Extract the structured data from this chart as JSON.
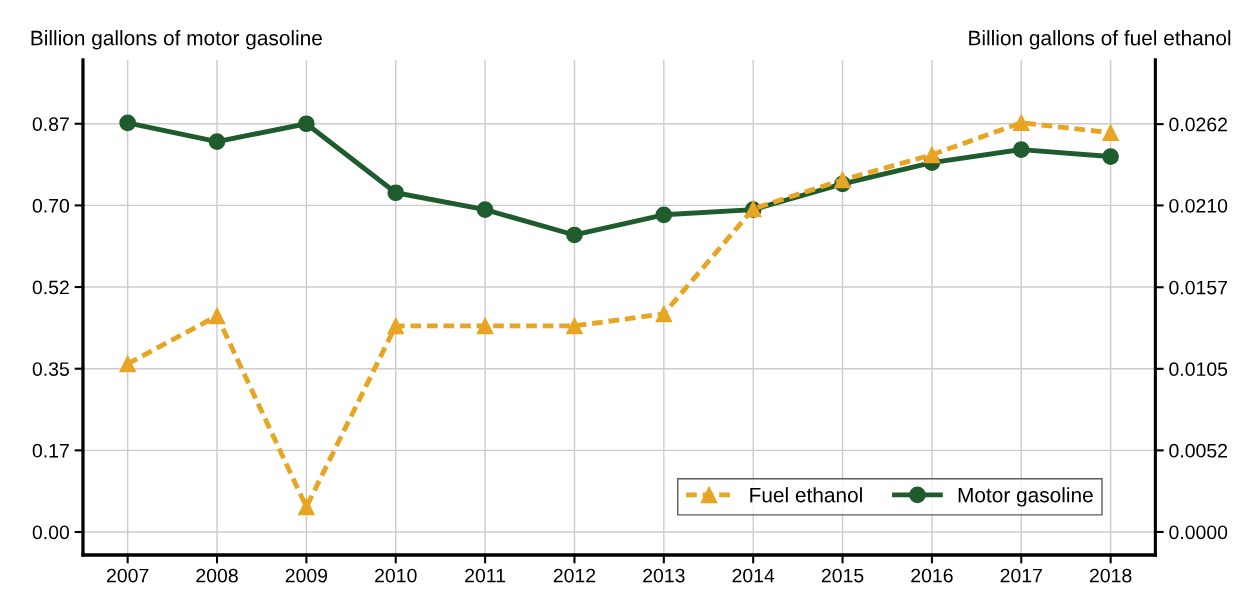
{
  "chart_data": {
    "type": "line",
    "ylabel": "Billion gallons of motor gasoline",
    "y2label": "Billion gallons of fuel ethanol",
    "categories": [
      "2007",
      "2008",
      "2009",
      "2010",
      "2011",
      "2012",
      "2013",
      "2014",
      "2015",
      "2016",
      "2017",
      "2018"
    ],
    "series": [
      {
        "name": "Fuel ethanol",
        "color": "#e8a524",
        "axis": "y2",
        "marker": "triangle",
        "line_style": "dashed",
        "values": [
          0.01079,
          0.01387,
          0.00161,
          0.01323,
          0.01323,
          0.01323,
          0.014,
          0.02074,
          0.0226,
          0.02421,
          0.02627,
          0.02563
        ]
      },
      {
        "name": "Motor gasoline",
        "color": "#1e5c2e",
        "axis": "y",
        "marker": "circle",
        "line_style": "solid",
        "values": [
          0.872,
          0.832,
          0.87,
          0.723,
          0.687,
          0.633,
          0.676,
          0.687,
          0.742,
          0.787,
          0.815,
          0.8
        ]
      }
    ],
    "ylim": [
      -0.049,
      1.006
    ],
    "yticks": [
      {
        "value": 0,
        "label": "0.00"
      },
      {
        "value": 0.174,
        "label": "0.17"
      },
      {
        "value": 0.348,
        "label": "0.35"
      },
      {
        "value": 0.522,
        "label": "0.52"
      },
      {
        "value": 0.696,
        "label": "0.70"
      },
      {
        "value": 0.87,
        "label": "0.87"
      }
    ],
    "y2lim": [
      -0.00148,
      0.0303
    ],
    "y2ticks": [
      {
        "value": 0,
        "label": "0.0000"
      },
      {
        "value": 0.005236,
        "label": "0.0052"
      },
      {
        "value": 0.010472,
        "label": "0.0105"
      },
      {
        "value": 0.015708,
        "label": "0.0157"
      },
      {
        "value": 0.02096,
        "label": "0.0210"
      },
      {
        "value": 0.02618,
        "label": "0.0262"
      }
    ],
    "grid": true,
    "legend": "bottom right"
  }
}
